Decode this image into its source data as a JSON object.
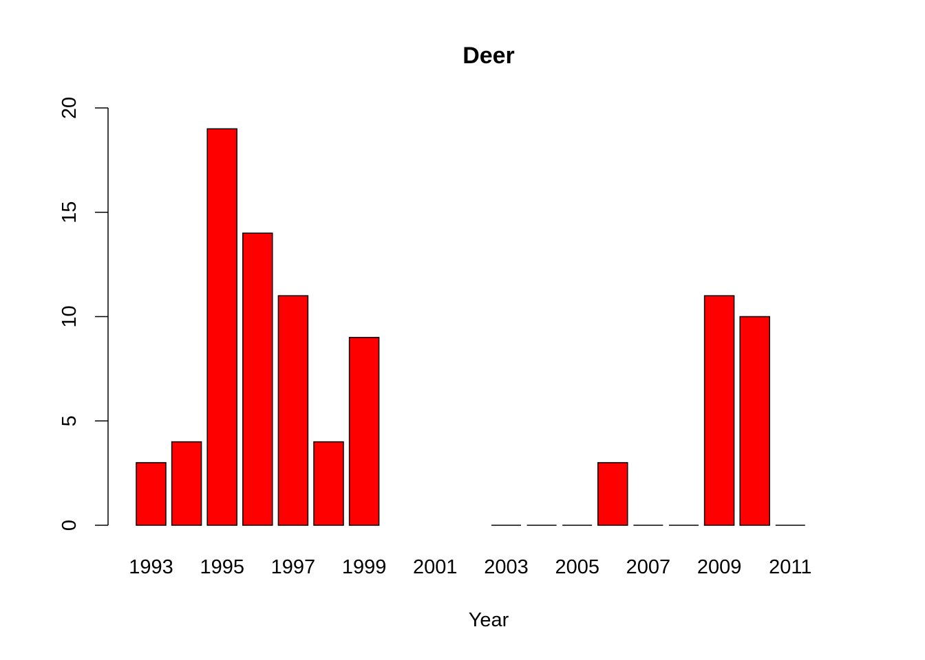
{
  "chart_data": {
    "type": "bar",
    "title": "Deer",
    "xlabel": "Year",
    "ylabel": "",
    "ylim": [
      0,
      20
    ],
    "yticks": [
      0,
      5,
      10,
      15,
      20
    ],
    "categories": [
      "1993",
      "1994",
      "1995",
      "1996",
      "1997",
      "1998",
      "1999",
      "2000",
      "2001",
      "2002",
      "2003",
      "2004",
      "2005",
      "2006",
      "2007",
      "2008",
      "2009",
      "2010",
      "2011"
    ],
    "category_labels_shown": [
      "1993",
      "1995",
      "1997",
      "1999",
      "2001",
      "2003",
      "2005",
      "2007",
      "2009",
      "2011"
    ],
    "values": [
      3,
      4,
      19,
      14,
      11,
      4,
      9,
      null,
      null,
      null,
      0,
      0,
      0,
      3,
      0,
      0,
      11,
      10,
      0
    ],
    "bar_color": "#ff0000",
    "border_color": "#000000",
    "grid": false,
    "legend": "none"
  }
}
